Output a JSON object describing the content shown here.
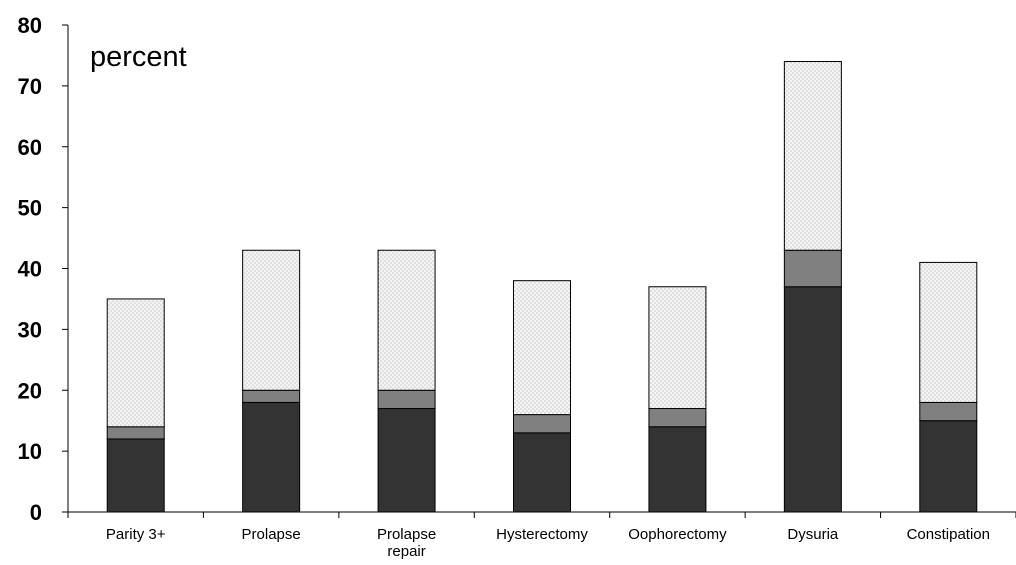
{
  "chart_data": {
    "type": "bar",
    "stacked": true,
    "categories": [
      "Parity 3+",
      "Prolapse",
      "Prolapse\nrepair",
      "Hysterectomy",
      "Oophorectomy",
      "Dysuria",
      "Constipation"
    ],
    "series": [
      {
        "values": [
          12,
          18,
          17,
          13,
          14,
          37,
          15
        ],
        "color": "#333333"
      },
      {
        "values": [
          2,
          2,
          3,
          3,
          3,
          6,
          3
        ],
        "color": "#808080"
      },
      {
        "values": [
          21,
          23,
          23,
          22,
          20,
          31,
          23
        ],
        "color": "#f2f2f2",
        "pattern": "dotted"
      }
    ],
    "totals": [
      35,
      43,
      43,
      38,
      37,
      74,
      41
    ],
    "annotation": "percent",
    "y_ticks": [
      0,
      10,
      20,
      30,
      40,
      50,
      60,
      70,
      80
    ],
    "ylim": [
      0,
      80
    ],
    "grid": false,
    "legend": "none"
  }
}
